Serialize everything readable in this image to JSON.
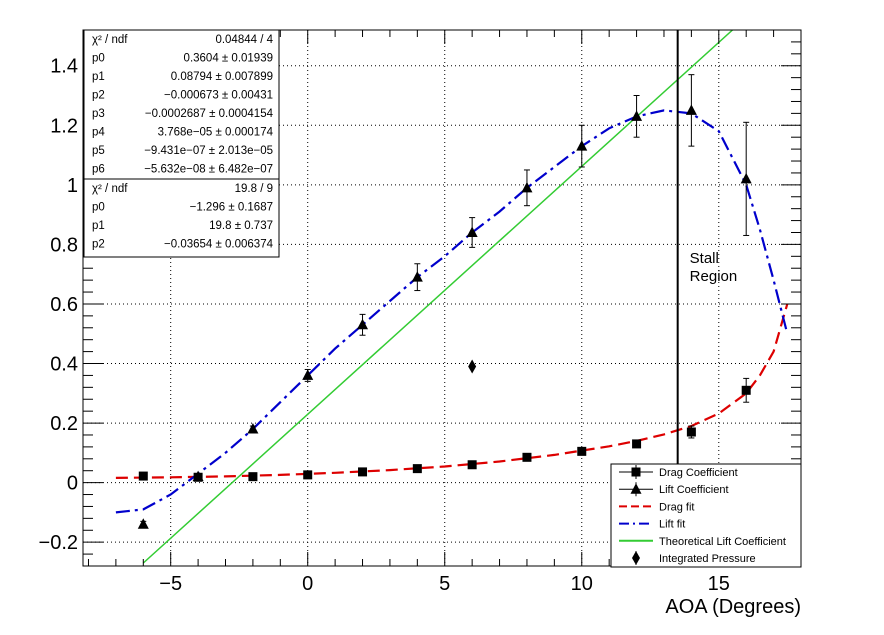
{
  "chart_data": {
    "type": "scatter",
    "title": "",
    "xlabel": "AOA (Degrees)",
    "ylabel": "",
    "xlim": [
      -8.2,
      18.0
    ],
    "ylim": [
      -0.28,
      1.52
    ],
    "x_ticks": [
      -5,
      0,
      5,
      10,
      15
    ],
    "y_ticks": [
      -0.2,
      0,
      0.2,
      0.4,
      0.6,
      0.8,
      1,
      1.2,
      1.4
    ],
    "grid": true,
    "legend_position": "bottom-right",
    "annotations": [
      {
        "kind": "vertical-line",
        "x": 13.5,
        "label_lines": [
          "Stall",
          "Region"
        ]
      }
    ],
    "series": [
      {
        "name": "Drag Coefficient",
        "marker": "square",
        "color": "#000000",
        "x": [
          -6,
          -4,
          -2,
          0,
          2,
          4,
          6,
          8,
          10,
          12,
          14,
          16
        ],
        "y": [
          0.022,
          0.018,
          0.02,
          0.026,
          0.036,
          0.047,
          0.06,
          0.085,
          0.105,
          0.13,
          0.17,
          0.31
        ],
        "err": [
          0.005,
          0.004,
          0.004,
          0.004,
          0.005,
          0.006,
          0.007,
          0.008,
          0.009,
          0.012,
          0.02,
          0.04
        ]
      },
      {
        "name": "Lift Coefficient",
        "marker": "triangle",
        "color": "#000000",
        "x": [
          -6,
          -4,
          -2,
          0,
          2,
          4,
          6,
          8,
          10,
          12,
          14,
          16
        ],
        "y": [
          -0.14,
          0.02,
          0.18,
          0.36,
          0.53,
          0.69,
          0.84,
          0.99,
          1.13,
          1.23,
          1.25,
          1.02
        ],
        "err": [
          0.01,
          0.01,
          0.01,
          0.02,
          0.035,
          0.045,
          0.05,
          0.06,
          0.07,
          0.07,
          0.12,
          0.19
        ]
      },
      {
        "name": "Drag fit",
        "kind": "fit",
        "color": "#dd0000",
        "dash": "dashed",
        "x": [
          -7,
          -5,
          -3,
          -1,
          1,
          3,
          5,
          7,
          9,
          11,
          12,
          13,
          14,
          15,
          16,
          16.5,
          17,
          17.5
        ],
        "y": [
          0.016,
          0.018,
          0.021,
          0.026,
          0.033,
          0.042,
          0.054,
          0.071,
          0.093,
          0.122,
          0.14,
          0.162,
          0.19,
          0.232,
          0.3,
          0.36,
          0.44,
          0.6
        ]
      },
      {
        "name": "Lift fit",
        "kind": "fit",
        "color": "#0000cc",
        "dash": "dash-dot",
        "x": [
          -7,
          -6,
          -5,
          -4,
          -3,
          -2,
          -1,
          0,
          1,
          2,
          3,
          4,
          5,
          6,
          7,
          8,
          9,
          10,
          11,
          12,
          13,
          14,
          15,
          16,
          16.5,
          17,
          17.5
        ],
        "y": [
          -0.1,
          -0.09,
          -0.04,
          0.03,
          0.1,
          0.18,
          0.27,
          0.36,
          0.45,
          0.53,
          0.61,
          0.69,
          0.76,
          0.84,
          0.91,
          0.99,
          1.06,
          1.13,
          1.19,
          1.23,
          1.25,
          1.24,
          1.18,
          1.0,
          0.85,
          0.68,
          0.5
        ]
      },
      {
        "name": "Theoretical Lift Coefficient",
        "kind": "line",
        "color": "#33cc33",
        "x": [
          -6.0,
          15.5
        ],
        "y": [
          -0.27,
          1.52
        ]
      },
      {
        "name": "Integrated Pressure",
        "marker": "diamond",
        "color": "#000000",
        "x": [
          6
        ],
        "y": [
          0.39
        ],
        "err": [
          0.0
        ]
      }
    ],
    "stat_boxes": [
      {
        "rows": [
          [
            "χ² / ndf",
            "0.04844 / 4"
          ],
          [
            "p0",
            "0.3604 ± 0.01939"
          ],
          [
            "p1",
            "0.08794 ± 0.007899"
          ],
          [
            "p2",
            "−0.000673 ± 0.00431"
          ],
          [
            "p3",
            "−0.0002687 ± 0.0004154"
          ],
          [
            "p4",
            "3.768e−05 ± 0.000174"
          ],
          [
            "p5",
            "−9.431e−07 ± 2.013e−05"
          ],
          [
            "p6",
            "−5.632e−08 ± 6.482e−07"
          ]
        ]
      },
      {
        "rows": [
          [
            "χ² / ndf",
            "19.8 / 9"
          ],
          [
            "p0",
            "−1.296 ± 0.1687"
          ],
          [
            "p1",
            "19.8 ± 0.737"
          ],
          [
            "p2",
            "−0.03654 ± 0.006374"
          ]
        ]
      }
    ]
  }
}
